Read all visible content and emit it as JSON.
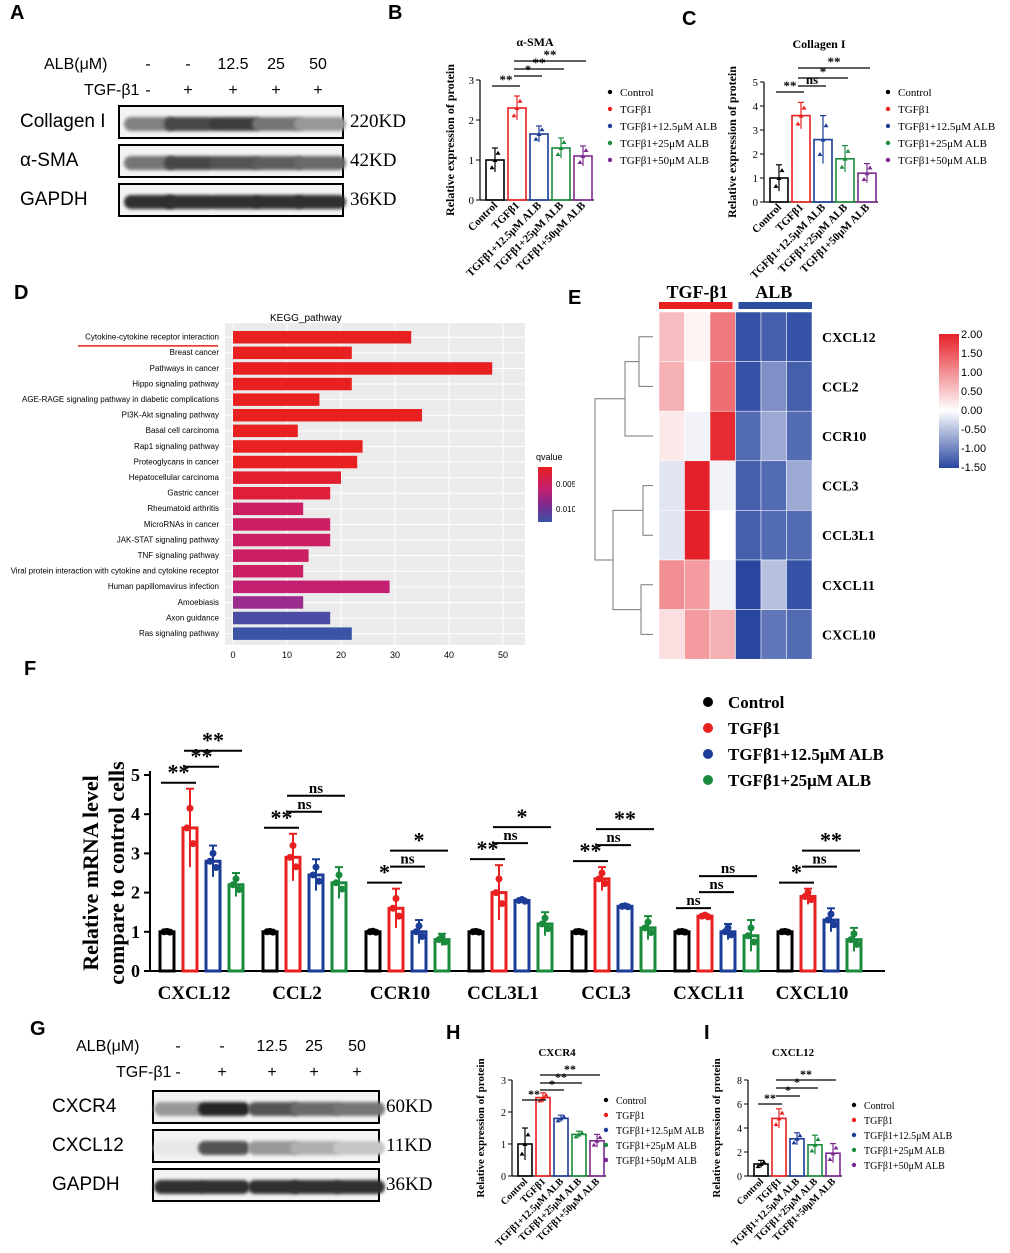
{
  "panels": {
    "A": "A",
    "B": "B",
    "C": "C",
    "D": "D",
    "E": "E",
    "F": "F",
    "G": "G",
    "H": "H",
    "I": "I"
  },
  "blotA": {
    "alb_label": "ALB(μM)",
    "alb_values": [
      "-",
      "-",
      "12.5",
      "25",
      "50"
    ],
    "tgf_label": "TGF-β1",
    "tgf_values": [
      "-",
      "+",
      "+",
      "+",
      "+"
    ],
    "rows": [
      {
        "name": "Collagen I",
        "size": "220KD",
        "intensity": [
          0.55,
          0.8,
          0.85,
          0.6,
          0.45
        ]
      },
      {
        "name": "α-SMA",
        "size": "42KD",
        "intensity": [
          0.6,
          0.8,
          0.75,
          0.7,
          0.65
        ]
      },
      {
        "name": "GAPDH",
        "size": "36KD",
        "intensity": [
          0.9,
          0.9,
          0.9,
          0.9,
          0.9
        ]
      }
    ]
  },
  "blotG": {
    "alb_label": "ALB(μM)",
    "alb_values": [
      "-",
      "-",
      "12.5",
      "25",
      "50"
    ],
    "tgf_label": "TGF-β1",
    "tgf_values": [
      "-",
      "+",
      "+",
      "+",
      "+"
    ],
    "rows": [
      {
        "name": "CXCR4",
        "size": "60KD",
        "intensity": [
          0.45,
          0.95,
          0.75,
          0.65,
          0.6
        ]
      },
      {
        "name": "CXCL12",
        "size": "11KD",
        "intensity": [
          0.1,
          0.75,
          0.45,
          0.35,
          0.25
        ]
      },
      {
        "name": "GAPDH",
        "size": "36KD",
        "intensity": [
          0.9,
          0.9,
          0.9,
          0.9,
          0.9
        ]
      }
    ]
  },
  "legend5": [
    "Control",
    "TGFβ1",
    "TGFβ1+12.5μM ALB",
    "TGFβ1+25μM ALB",
    "TGFβ1+50μM ALB"
  ],
  "legend4": [
    "Control",
    "TGFβ1",
    "TGFβ1+12.5μM ALB",
    "TGFβ1+25μM ALB"
  ],
  "group_colors": [
    "#000000",
    "#e8201f",
    "#1b3c97",
    "#1a8a3c",
    "#7b2a8f"
  ],
  "chart_data": [
    {
      "id": "B",
      "type": "bar",
      "title": "α-SMA",
      "ylabel": "Relative expression of protein",
      "categories": [
        "Control",
        "TGFβ1",
        "TGFβ1+12.5μM ALB",
        "TGFβ1+25μM ALB",
        "TGFβ1+50μM ALB"
      ],
      "values": [
        1.0,
        2.3,
        1.65,
        1.3,
        1.1
      ],
      "errors": [
        0.3,
        0.3,
        0.2,
        0.25,
        0.25
      ],
      "ylim": [
        0,
        3
      ],
      "yticks": [
        "0",
        "1",
        "2",
        "3"
      ],
      "significance": [
        "**",
        "*",
        "**",
        "**"
      ]
    },
    {
      "id": "C",
      "type": "bar",
      "title": "Collagen I",
      "ylabel": "Relative expression of protein",
      "categories": [
        "Control",
        "TGFβ1",
        "TGFβ1+12.5μM ALB",
        "TGFβ1+25μM ALB",
        "TGFβ1+50μM ALB"
      ],
      "values": [
        1.0,
        3.6,
        2.6,
        1.8,
        1.2
      ],
      "errors": [
        0.55,
        0.55,
        1.0,
        0.55,
        0.4
      ],
      "ylim": [
        0,
        5
      ],
      "yticks": [
        "0",
        "1",
        "2",
        "3",
        "4",
        "5"
      ],
      "significance": [
        "**",
        "ns",
        "*",
        "**"
      ]
    },
    {
      "id": "D",
      "type": "bar",
      "title": "KEGG_pathway",
      "legend_title": "qvalue",
      "legend_ticks": [
        "0.005",
        "0.010"
      ],
      "xticks": [
        "0",
        "10",
        "20",
        "30",
        "40",
        "50"
      ],
      "xlim": [
        0,
        50
      ],
      "categories": [
        "Cytokine-cytokine receptor interaction",
        "Breast cancer",
        "Pathways in cancer",
        "Hippo signaling pathway",
        "AGE-RAGE signaling pathway in diabetic complications",
        "PI3K-Akt signaling pathway",
        "Basal cell carcinoma",
        "Rap1 signaling pathway",
        "Proteoglycans in cancer",
        "Hepatocellular carcinoma",
        "Gastric cancer",
        "Rheumatoid arthritis",
        "MicroRNAs in cancer",
        "JAK-STAT signaling pathway",
        "TNF signaling pathway",
        "Viral protein interaction with cytokine and cytokine receptor",
        "Human papillomavirus infection",
        "Amoebiasis",
        "Axon guidance",
        "Ras signaling pathway"
      ],
      "values": [
        33,
        22,
        48,
        22,
        16,
        35,
        12,
        24,
        23,
        20,
        18,
        13,
        18,
        18,
        14,
        13,
        29,
        13,
        18,
        22
      ],
      "colors": [
        "#e8201f",
        "#e8201f",
        "#e8201f",
        "#e8201f",
        "#e8201f",
        "#e8201f",
        "#e8201f",
        "#e8201f",
        "#e8201f",
        "#e21f2f",
        "#df1f3a",
        "#cc1f62",
        "#cb1f63",
        "#cb1f63",
        "#cb1f63",
        "#cb1f63",
        "#c41f70",
        "#9b2b8c",
        "#4b4ca3",
        "#3a55a6"
      ]
    },
    {
      "id": "E",
      "type": "heatmap",
      "groups": [
        "TGF-β1",
        "ALB"
      ],
      "rows": [
        "CXCL12",
        "CCL2",
        "CCR10",
        "CCL3",
        "CCL3L1",
        "CXCL11",
        "CXCL10"
      ],
      "values": [
        [
          0.6,
          0.1,
          1.2,
          -1.4,
          -1.3,
          -1.4
        ],
        [
          0.7,
          0.0,
          1.3,
          -1.4,
          -0.9,
          -1.3
        ],
        [
          0.2,
          -0.1,
          1.9,
          -1.2,
          -0.7,
          -1.2
        ],
        [
          -0.2,
          2.0,
          -0.1,
          -1.3,
          -1.2,
          -0.7
        ],
        [
          -0.2,
          2.0,
          0.0,
          -1.3,
          -1.2,
          -1.2
        ],
        [
          1.0,
          0.9,
          -0.1,
          -1.5,
          -0.5,
          -1.4
        ],
        [
          0.3,
          0.9,
          0.7,
          -1.5,
          -1.1,
          -1.2
        ]
      ],
      "colorbar_ticks": [
        "2.00",
        "1.50",
        "1.00",
        "0.50",
        "0.00",
        "-0.50",
        "-1.00",
        "-1.50"
      ],
      "vmin": -1.5,
      "vmax": 2.0
    },
    {
      "id": "F",
      "type": "bar",
      "ylabel": "Relative mRNA level compare to control cells",
      "categories": [
        "CXCL12",
        "CCL2",
        "CCR10",
        "CCL3L1",
        "CCL3",
        "CXCL11",
        "CXCL10"
      ],
      "ylim": [
        0,
        5
      ],
      "yticks": [
        "0",
        "1",
        "2",
        "3",
        "4",
        "5"
      ],
      "series": [
        {
          "name": "Control",
          "values": [
            1.0,
            1.0,
            1.0,
            1.0,
            1.0,
            1.0,
            1.0
          ],
          "errors": [
            0.02,
            0.02,
            0.03,
            0.02,
            0.02,
            0.02,
            0.02
          ]
        },
        {
          "name": "TGFβ1",
          "values": [
            3.65,
            2.9,
            1.6,
            2.0,
            2.35,
            1.4,
            1.9
          ],
          "errors": [
            1.0,
            0.6,
            0.5,
            0.7,
            0.3,
            0.05,
            0.2
          ]
        },
        {
          "name": "TGFβ1+12.5μM ALB",
          "values": [
            2.8,
            2.45,
            1.0,
            1.8,
            1.65,
            1.0,
            1.3
          ],
          "errors": [
            0.4,
            0.4,
            0.3,
            0.05,
            0.03,
            0.2,
            0.3
          ]
        },
        {
          "name": "TGFβ1+25μM ALB",
          "values": [
            2.2,
            2.25,
            0.8,
            1.2,
            1.1,
            0.9,
            0.8
          ],
          "errors": [
            0.3,
            0.4,
            0.15,
            0.3,
            0.3,
            0.4,
            0.3
          ]
        }
      ],
      "significance": [
        [
          "**",
          "**",
          "**"
        ],
        [
          "**",
          "ns",
          "ns"
        ],
        [
          "*",
          "ns",
          "*"
        ],
        [
          "**",
          "ns",
          "*"
        ],
        [
          "**",
          "ns",
          "**"
        ],
        [
          "ns",
          "ns",
          "ns"
        ],
        [
          "*",
          "ns",
          "**"
        ]
      ]
    },
    {
      "id": "H",
      "type": "bar",
      "title": "CXCR4",
      "ylabel": "Relative expression of protein",
      "categories": [
        "Control",
        "TGFβ1",
        "TGFβ1+12.5μM ALB",
        "TGFβ1+25μM ALB",
        "TGFβ1+50μM ALB"
      ],
      "values": [
        1.0,
        2.45,
        1.8,
        1.3,
        1.1
      ],
      "errors": [
        0.5,
        0.15,
        0.1,
        0.1,
        0.2
      ],
      "ylim": [
        0,
        3
      ],
      "yticks": [
        "0",
        "1",
        "2",
        "3"
      ],
      "significance": [
        "**",
        "*",
        "**",
        "**"
      ]
    },
    {
      "id": "I",
      "type": "bar",
      "title": "CXCL12",
      "ylabel": "Relative expression of protein",
      "categories": [
        "Control",
        "TGFβ1",
        "TGFβ1+12.5μM ALB",
        "TGFβ1+25μM ALB",
        "TGFβ1+50μM ALB"
      ],
      "values": [
        1.0,
        4.8,
        3.1,
        2.6,
        1.9
      ],
      "errors": [
        0.3,
        0.8,
        0.5,
        0.8,
        0.8
      ],
      "ylim": [
        0,
        8
      ],
      "yticks": [
        "0",
        "2",
        "4",
        "6",
        "8"
      ],
      "significance": [
        "**",
        "*",
        "*",
        "**"
      ]
    }
  ]
}
